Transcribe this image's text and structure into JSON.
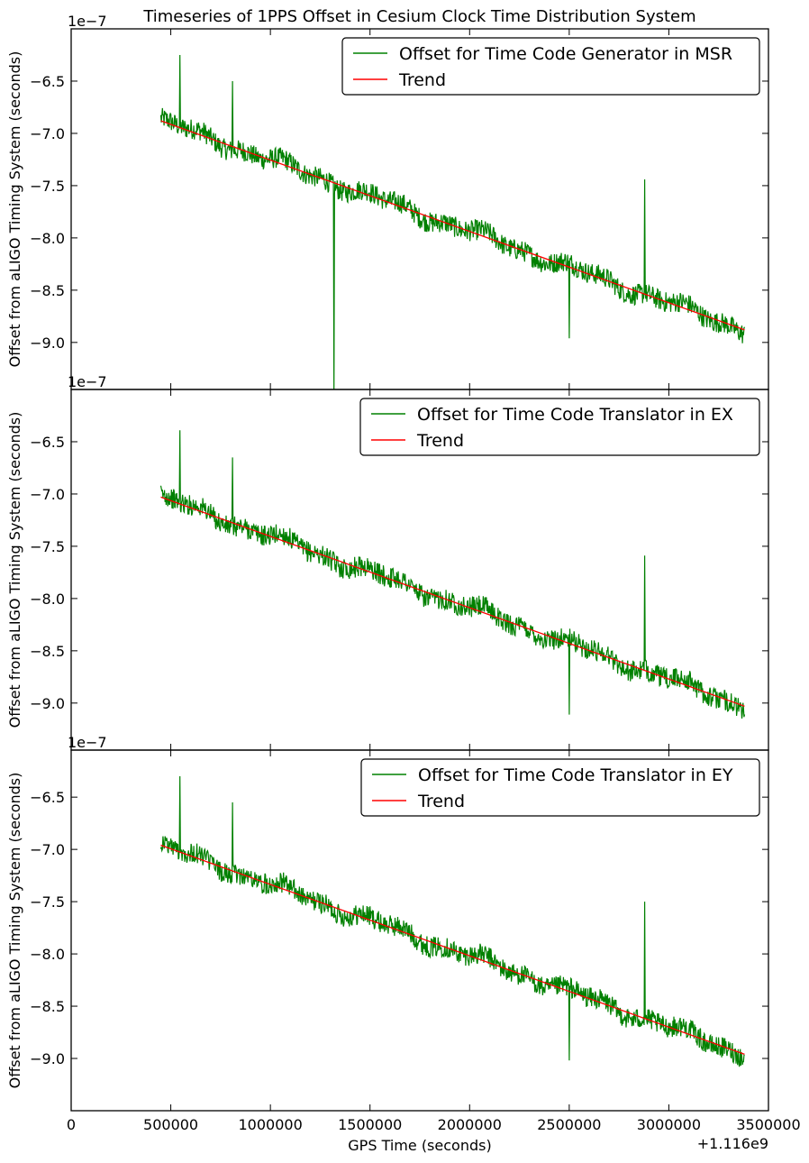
{
  "figure": {
    "title": "Timeseries of 1PPS Offset in Cesium Clock Time Distribution System",
    "xlabel": "GPS Time (seconds)",
    "x_offset_label": "+1.116e9",
    "ylabel": "Offset from aLIGO Timing System (seconds)",
    "y_scale_label": "1e−7"
  },
  "chart_data": [
    {
      "type": "line",
      "panel": "top",
      "xlim": [
        0,
        3500000
      ],
      "ylim": [
        -9.45,
        -6.0
      ],
      "y_multiplier": "1e-7",
      "x_offset": 1116000000,
      "yticks": [
        -9.0,
        -8.5,
        -8.0,
        -7.5,
        -7.0,
        -6.5
      ],
      "ytick_labels": [
        "−9.0",
        "−8.5",
        "−8.0",
        "−7.5",
        "−7.0",
        "−6.5"
      ],
      "xticks": [
        0,
        500000,
        1000000,
        1500000,
        2000000,
        2500000,
        3000000,
        3500000
      ],
      "xtick_labels": [],
      "legend_loc": "upper right",
      "grid": false,
      "series": [
        {
          "name": "Offset for Time Code Generator in MSR",
          "color": "#008000",
          "x_range": [
            450000,
            3380000
          ],
          "y_trend_range": [
            -6.88,
            -8.88
          ],
          "noise_amplitude": 0.1,
          "spikes": [
            {
              "x": 545000,
              "y": -6.25
            },
            {
              "x": 810000,
              "y": -6.5
            },
            {
              "x": 1320000,
              "y": -9.5
            },
            {
              "x": 2500000,
              "y": -8.96
            },
            {
              "x": 2880000,
              "y": -7.44
            }
          ]
        },
        {
          "name": "Trend",
          "color": "#ff0000",
          "x": [
            450000,
            3380000
          ],
          "y": [
            -6.88,
            -8.88
          ]
        }
      ]
    },
    {
      "type": "line",
      "panel": "middle",
      "xlim": [
        0,
        3500000
      ],
      "ylim": [
        -9.45,
        -6.0
      ],
      "y_multiplier": "1e-7",
      "x_offset": 1116000000,
      "yticks": [
        -9.0,
        -8.5,
        -8.0,
        -7.5,
        -7.0,
        -6.5
      ],
      "ytick_labels": [
        "−9.0",
        "−8.5",
        "−8.0",
        "−7.5",
        "−7.0",
        "−6.5"
      ],
      "xticks": [
        0,
        500000,
        1000000,
        1500000,
        2000000,
        2500000,
        3000000,
        3500000
      ],
      "xtick_labels": [],
      "legend_loc": "upper right",
      "grid": false,
      "series": [
        {
          "name": "Offset for Time Code Translator in EX",
          "color": "#008000",
          "x_range": [
            450000,
            3380000
          ],
          "y_trend_range": [
            -7.03,
            -9.03
          ],
          "noise_amplitude": 0.1,
          "spikes": [
            {
              "x": 545000,
              "y": -6.39
            },
            {
              "x": 810000,
              "y": -6.65
            },
            {
              "x": 2500000,
              "y": -9.11
            },
            {
              "x": 2880000,
              "y": -7.59
            }
          ]
        },
        {
          "name": "Trend",
          "color": "#ff0000",
          "x": [
            450000,
            3380000
          ],
          "y": [
            -7.03,
            -9.03
          ]
        }
      ]
    },
    {
      "type": "line",
      "panel": "bottom",
      "xlim": [
        0,
        3500000
      ],
      "ylim": [
        -9.5,
        -6.05
      ],
      "y_multiplier": "1e-7",
      "x_offset": 1116000000,
      "yticks": [
        -9.0,
        -8.5,
        -8.0,
        -7.5,
        -7.0,
        -6.5
      ],
      "ytick_labels": [
        "−9.0",
        "−8.5",
        "−8.0",
        "−7.5",
        "−7.0",
        "−6.5"
      ],
      "xticks": [
        0,
        500000,
        1000000,
        1500000,
        2000000,
        2500000,
        3000000,
        3500000
      ],
      "xtick_labels": [
        "0",
        "500000",
        "1000000",
        "1500000",
        "2000000",
        "2500000",
        "3000000",
        "3500000"
      ],
      "legend_loc": "upper right",
      "grid": false,
      "series": [
        {
          "name": "Offset for Time Code Translator in EY",
          "color": "#008000",
          "x_range": [
            450000,
            3380000
          ],
          "y_trend_range": [
            -6.96,
            -8.96
          ],
          "noise_amplitude": 0.1,
          "spikes": [
            {
              "x": 545000,
              "y": -6.3
            },
            {
              "x": 810000,
              "y": -6.55
            },
            {
              "x": 2500000,
              "y": -9.02
            },
            {
              "x": 2880000,
              "y": -7.5
            }
          ]
        },
        {
          "name": "Trend",
          "color": "#ff0000",
          "x": [
            450000,
            3380000
          ],
          "y": [
            -6.96,
            -8.96
          ]
        }
      ]
    }
  ]
}
